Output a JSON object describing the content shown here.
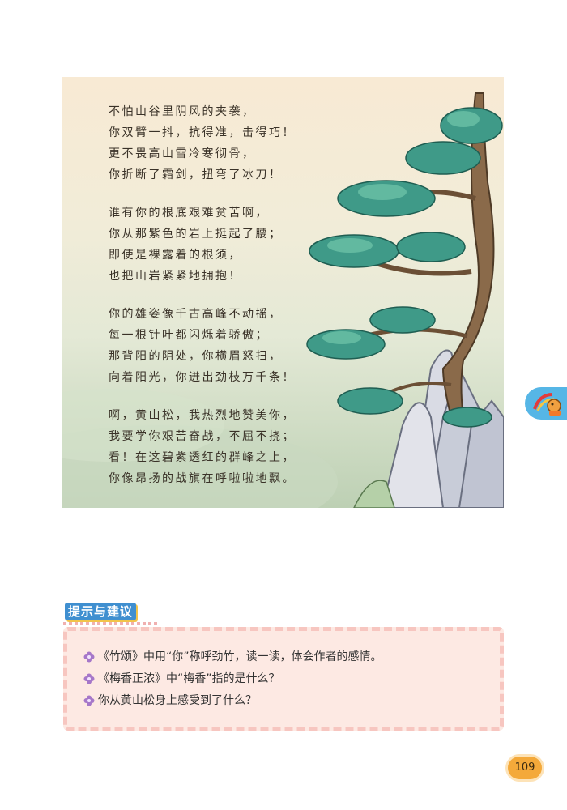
{
  "poem": {
    "stanzas": [
      [
        "不怕山谷里阴风的夹袭，",
        "你双臂一抖，抗得准，击得巧！",
        "更不畏高山雪冷寒彻骨，",
        "你折断了霜剑，扭弯了冰刀！"
      ],
      [
        "谁有你的根底艰难贫苦啊，",
        "你从那紫色的岩上挺起了腰；",
        "即使是裸露着的根须，",
        "也把山岩紧紧地拥抱！"
      ],
      [
        "你的雄姿像千古高峰不动摇，",
        "每一根针叶都闪烁着骄傲；",
        "那背阳的阴处，你横眉怒扫，",
        "向着阳光，你迸出劲枝万千条！"
      ],
      [
        "啊，黄山松，我热烈地赞美你，",
        "我要学你艰苦奋战，不屈不挠；",
        "看！在这碧紫透红的群峰之上，",
        "你像昂扬的战旗在呼啦啦地飘。"
      ]
    ]
  },
  "tips": {
    "heading": "提示与建议",
    "items": [
      "《竹颂》中用“你”称呼劲竹，读一读，体会作者的感情。",
      "《梅香正浓》中“梅香”指的是什么？",
      "你从黄山松身上感受到了什么？"
    ]
  },
  "page_number": "109",
  "colors": {
    "tips_background": "#fde9e3",
    "heading_blue": "#3f8fd0",
    "page_badge": "#f4a93a",
    "side_tab": "#56b6e6"
  }
}
